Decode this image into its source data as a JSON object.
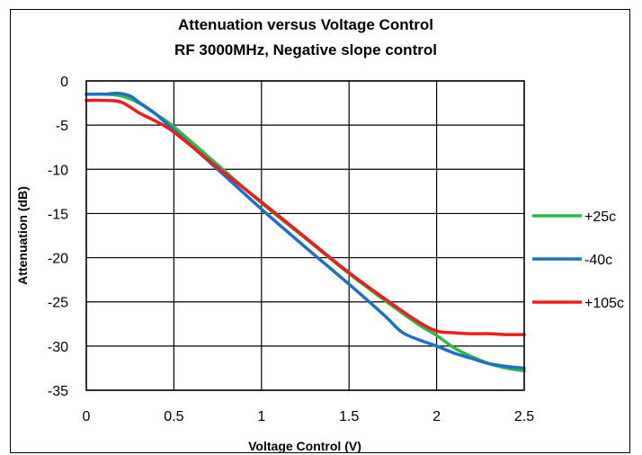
{
  "chart_data": {
    "type": "line",
    "title": "Attenuation versus Voltage Control",
    "subtitle": "RF 3000MHz, Negative slope control",
    "xlabel": "Voltage Control (V)",
    "ylabel": "Attenuation (dB)",
    "xlim": [
      0,
      2.5
    ],
    "ylim": [
      -35,
      0
    ],
    "xticks": [
      "0",
      "0.5",
      "1",
      "1.5",
      "2",
      "2.5"
    ],
    "yticks": [
      "0",
      "-5",
      "-10",
      "-15",
      "-20",
      "-25",
      "-30",
      "-35"
    ],
    "xtick_values": [
      0,
      0.5,
      1,
      1.5,
      2,
      2.5
    ],
    "ytick_values": [
      0,
      -5,
      -10,
      -15,
      -20,
      -25,
      -30,
      -35
    ],
    "grid": true,
    "legend_position": "right",
    "series": [
      {
        "name": "+25c",
        "color": "#2db84a",
        "x": [
          0,
          0.1,
          0.2,
          0.3,
          0.4,
          0.5,
          0.75,
          1.0,
          1.25,
          1.5,
          1.75,
          1.9,
          2.0,
          2.1,
          2.2,
          2.3,
          2.4,
          2.5
        ],
        "y": [
          -1.5,
          -1.5,
          -1.7,
          -2.5,
          -3.8,
          -5.2,
          -9.5,
          -13.8,
          -17.8,
          -21.8,
          -25.5,
          -27.6,
          -28.8,
          -30.2,
          -31.2,
          -32.0,
          -32.5,
          -32.8
        ]
      },
      {
        "name": "-40c",
        "color": "#1f6fc4",
        "x": [
          0,
          0.1,
          0.18,
          0.25,
          0.3,
          0.4,
          0.5,
          0.75,
          1.0,
          1.25,
          1.5,
          1.7,
          1.8,
          1.9,
          2.0,
          2.1,
          2.2,
          2.3,
          2.4,
          2.5
        ],
        "y": [
          -1.5,
          -1.5,
          -1.4,
          -1.7,
          -2.4,
          -3.8,
          -5.6,
          -10.0,
          -14.5,
          -18.8,
          -23.0,
          -26.5,
          -28.4,
          -29.3,
          -30.0,
          -30.8,
          -31.4,
          -32.0,
          -32.3,
          -32.5
        ]
      },
      {
        "name": "+105c",
        "color": "#ee1c1c",
        "x": [
          0,
          0.1,
          0.2,
          0.3,
          0.4,
          0.5,
          0.75,
          1.0,
          1.25,
          1.5,
          1.75,
          1.9,
          2.0,
          2.1,
          2.2,
          2.3,
          2.4,
          2.5
        ],
        "y": [
          -2.2,
          -2.2,
          -2.4,
          -3.6,
          -4.6,
          -5.8,
          -9.8,
          -13.7,
          -17.7,
          -21.7,
          -25.3,
          -27.3,
          -28.3,
          -28.5,
          -28.6,
          -28.6,
          -28.7,
          -28.7
        ]
      }
    ]
  }
}
